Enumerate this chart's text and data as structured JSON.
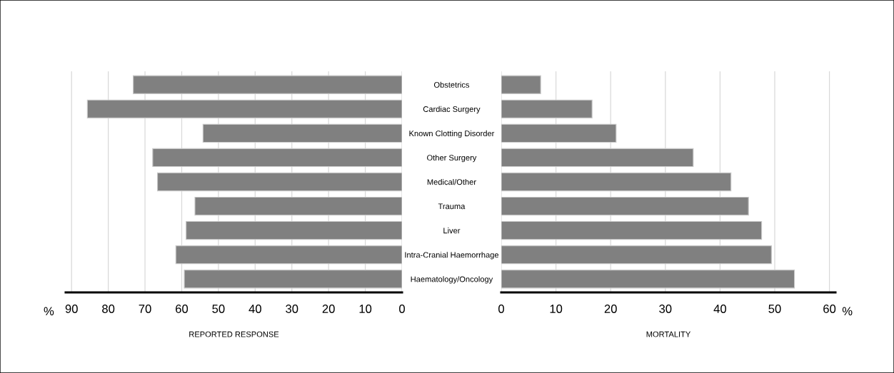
{
  "chart_data": [
    {
      "type": "bar",
      "orientation": "horizontal",
      "xlabel": "REPORTED RESPONSE",
      "annotations": [
        "%"
      ],
      "categories": [
        "Obstetrics",
        "Cardiac Surgery",
        "Known Clotting Disorder",
        "Other Surgery",
        "Medical/Other",
        "Trauma",
        "Liver",
        "Intra-Cranial Haemorrhage",
        "Haematology/Oncology"
      ],
      "values": [
        73.2,
        85.7,
        54.2,
        67.9,
        66.6,
        56.4,
        58.8,
        61.6,
        59.3
      ],
      "color": "#808080",
      "xlim": [
        91.6,
        0
      ],
      "xticks": [
        90,
        80,
        70,
        60,
        50,
        40,
        30,
        20,
        10,
        0
      ],
      "grid": "x",
      "legend": false
    },
    {
      "type": "bar",
      "orientation": "horizontal",
      "xlabel": "MORTALITY",
      "annotations": [
        "%"
      ],
      "values": [
        7.2,
        16.6,
        21.0,
        35.1,
        42.0,
        45.2,
        47.6,
        49.4,
        53.6
      ],
      "color": "#808080",
      "xlim": [
        0,
        61.1
      ],
      "xticks": [
        0,
        10,
        20,
        30,
        40,
        50,
        60
      ],
      "grid": "x",
      "legend": false,
      "tick_labels": "x"
    }
  ]
}
